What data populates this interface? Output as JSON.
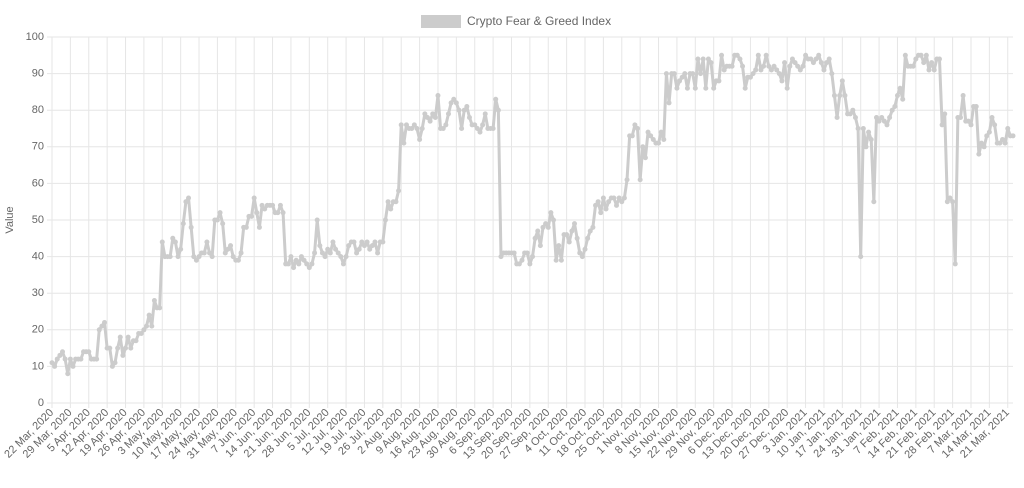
{
  "chart_data": {
    "type": "line",
    "ylabel": "Value",
    "ylim": [
      0,
      100
    ],
    "yticks": [
      0,
      10,
      20,
      30,
      40,
      50,
      60,
      70,
      80,
      90,
      100
    ],
    "grid": true,
    "legend": "top",
    "categories": [
      "22 Mar, 2020",
      null,
      null,
      null,
      null,
      null,
      null,
      "29 Mar, 2020",
      null,
      null,
      null,
      null,
      null,
      null,
      "5 Apr, 2020",
      null,
      null,
      null,
      null,
      null,
      null,
      "12 Apr, 2020",
      null,
      null,
      null,
      null,
      null,
      null,
      "19 Apr, 2020",
      null,
      null,
      null,
      null,
      null,
      null,
      "26 Apr, 2020",
      null,
      null,
      null,
      null,
      null,
      null,
      "3 May, 2020",
      null,
      null,
      null,
      null,
      null,
      null,
      "10 May, 2020",
      null,
      null,
      null,
      null,
      null,
      null,
      "17 May, 2020",
      null,
      null,
      null,
      null,
      null,
      null,
      "24 May, 2020",
      null,
      null,
      null,
      null,
      null,
      null,
      "31 May, 2020",
      null,
      null,
      null,
      null,
      null,
      null,
      "7 Jun, 2020",
      null,
      null,
      null,
      null,
      null,
      null,
      "14 Jun, 2020",
      null,
      null,
      null,
      null,
      null,
      null,
      "21 Jun, 2020",
      null,
      null,
      null,
      null,
      null,
      null,
      "28 Jun, 2020",
      null,
      null,
      null,
      null,
      null,
      null,
      "5 Jul, 2020",
      null,
      null,
      null,
      null,
      null,
      null,
      "12 Jul, 2020",
      null,
      null,
      null,
      null,
      null,
      null,
      "19 Jul, 2020",
      null,
      null,
      null,
      null,
      null,
      null,
      "26 Jul, 2020",
      null,
      null,
      null,
      null,
      null,
      null,
      "2 Aug, 2020",
      null,
      null,
      null,
      null,
      null,
      null,
      "9 Aug, 2020",
      null,
      null,
      null,
      null,
      null,
      null,
      "16 Aug, 2020",
      null,
      null,
      null,
      null,
      null,
      null,
      "23 Aug, 2020",
      null,
      null,
      null,
      null,
      null,
      null,
      "30 Aug, 2020",
      null,
      null,
      null,
      null,
      null,
      null,
      "6 Sep, 2020",
      null,
      null,
      null,
      null,
      null,
      null,
      "13 Sep, 2020",
      null,
      null,
      null,
      null,
      null,
      null,
      "20 Sep, 2020",
      null,
      null,
      null,
      null,
      null,
      null,
      "27 Sep, 2020",
      null,
      null,
      null,
      null,
      null,
      null,
      "4 Oct, 2020",
      null,
      null,
      null,
      null,
      null,
      null,
      "11 Oct, 2020",
      null,
      null,
      null,
      null,
      null,
      null,
      "18 Oct, 2020",
      null,
      null,
      null,
      null,
      null,
      null,
      "25 Oct, 2020",
      null,
      null,
      null,
      null,
      null,
      null,
      "1 Nov, 2020",
      null,
      null,
      null,
      null,
      null,
      null,
      "8 Nov, 2020",
      null,
      null,
      null,
      null,
      null,
      null,
      "15 Nov, 2020",
      null,
      null,
      null,
      null,
      null,
      null,
      "22 Nov, 2020",
      null,
      null,
      null,
      null,
      null,
      null,
      "29 Nov, 2020",
      null,
      null,
      null,
      null,
      null,
      null,
      "6 Dec, 2020",
      null,
      null,
      null,
      null,
      null,
      null,
      "13 Dec, 2020",
      null,
      null,
      null,
      null,
      null,
      null,
      "20 Dec, 2020",
      null,
      null,
      null,
      null,
      null,
      null,
      "27 Dec, 2020",
      null,
      null,
      null,
      null,
      null,
      null,
      "3 Jan, 2021",
      null,
      null,
      null,
      null,
      null,
      null,
      "10 Jan, 2021",
      null,
      null,
      null,
      null,
      null,
      null,
      "17 Jan, 2021",
      null,
      null,
      null,
      null,
      null,
      null,
      "24 Jan, 2021",
      null,
      null,
      null,
      null,
      null,
      null,
      "31 Jan, 2021",
      null,
      null,
      null,
      null,
      null,
      null,
      "7 Feb, 2021",
      null,
      null,
      null,
      null,
      null,
      null,
      "14 Feb, 2021",
      null,
      null,
      null,
      null,
      null,
      null,
      "21 Feb, 2021",
      null,
      null,
      null,
      null,
      null,
      null,
      "28 Feb, 2021",
      null,
      null,
      null,
      null,
      null,
      null,
      "7 Mar, 2021",
      null,
      null,
      null,
      null,
      null,
      null,
      "14 Mar, 2021",
      null,
      null,
      null,
      null,
      null,
      null,
      "21 Mar, 2021",
      null,
      null
    ],
    "series": [
      {
        "name": "Crypto Fear & Greed Index",
        "color": "#cccccc",
        "values": [
          11,
          10,
          12,
          13,
          14,
          12,
          8,
          12,
          10,
          12,
          12,
          12,
          14,
          14,
          14,
          12,
          12,
          12,
          20,
          21,
          22,
          15,
          15,
          10,
          11,
          15,
          18,
          13,
          15,
          18,
          15,
          17,
          17,
          19,
          19,
          20,
          21,
          24,
          21,
          28,
          26,
          26,
          44,
          40,
          40,
          40,
          45,
          44,
          40,
          42,
          49,
          55,
          56,
          48,
          40,
          39,
          40,
          41,
          41,
          44,
          41,
          40,
          50,
          50,
          52,
          49,
          41,
          42,
          43,
          40,
          39,
          39,
          41,
          48,
          48,
          51,
          51,
          56,
          52,
          48,
          54,
          53,
          54,
          54,
          54,
          52,
          52,
          54,
          52,
          38,
          38,
          40,
          37,
          39,
          38,
          40,
          39,
          38,
          37,
          38,
          41,
          50,
          43,
          41,
          40,
          42,
          41,
          44,
          42,
          41,
          40,
          38,
          40,
          43,
          44,
          44,
          41,
          42,
          44,
          43,
          44,
          42,
          43,
          44,
          41,
          44,
          44,
          50,
          55,
          53,
          55,
          55,
          58,
          76,
          71,
          76,
          75,
          75,
          76,
          75,
          72,
          75,
          79,
          78,
          77,
          79,
          78,
          84,
          75,
          75,
          76,
          79,
          82,
          83,
          82,
          80,
          75,
          80,
          81,
          78,
          76,
          76,
          75,
          74,
          76,
          79,
          75,
          75,
          75,
          83,
          80,
          40,
          41,
          41,
          41,
          41,
          41,
          38,
          38,
          39,
          41,
          41,
          38,
          40,
          45,
          47,
          43,
          48,
          49,
          48,
          52,
          50,
          39,
          43,
          39,
          46,
          46,
          44,
          47,
          49,
          45,
          41,
          40,
          42,
          45,
          47,
          48,
          54,
          55,
          52,
          56,
          53,
          55,
          56,
          56,
          54,
          56,
          55,
          56,
          61,
          73,
          73,
          76,
          75,
          61,
          70,
          67,
          74,
          73,
          72,
          71,
          71,
          74,
          72,
          90,
          82,
          90,
          90,
          86,
          88,
          89,
          90,
          86,
          90,
          90,
          86,
          94,
          90,
          94,
          86,
          94,
          93,
          86,
          88,
          88,
          95,
          91,
          92,
          92,
          92,
          95,
          95,
          94,
          92,
          86,
          89,
          89,
          90,
          91,
          95,
          91,
          92,
          95,
          92,
          91,
          92,
          91,
          90,
          88,
          93,
          86,
          92,
          94,
          93,
          92,
          91,
          92,
          95,
          94,
          94,
          93,
          94,
          95,
          93,
          91,
          93,
          94,
          90,
          84,
          78,
          84,
          88,
          84,
          79,
          79,
          80,
          78,
          75,
          40,
          75,
          70,
          74,
          72,
          55,
          78,
          77,
          78,
          77,
          76,
          78,
          80,
          81,
          84,
          86,
          83,
          95,
          92,
          92,
          92,
          94,
          95,
          95,
          93,
          95,
          91,
          93,
          91,
          94,
          94,
          76,
          79,
          55,
          56,
          55,
          38,
          78,
          78,
          84,
          77,
          77,
          76,
          81,
          81,
          68,
          71,
          70,
          73,
          74,
          78,
          76,
          71,
          71,
          72,
          71,
          75,
          73,
          73
        ]
      }
    ]
  }
}
